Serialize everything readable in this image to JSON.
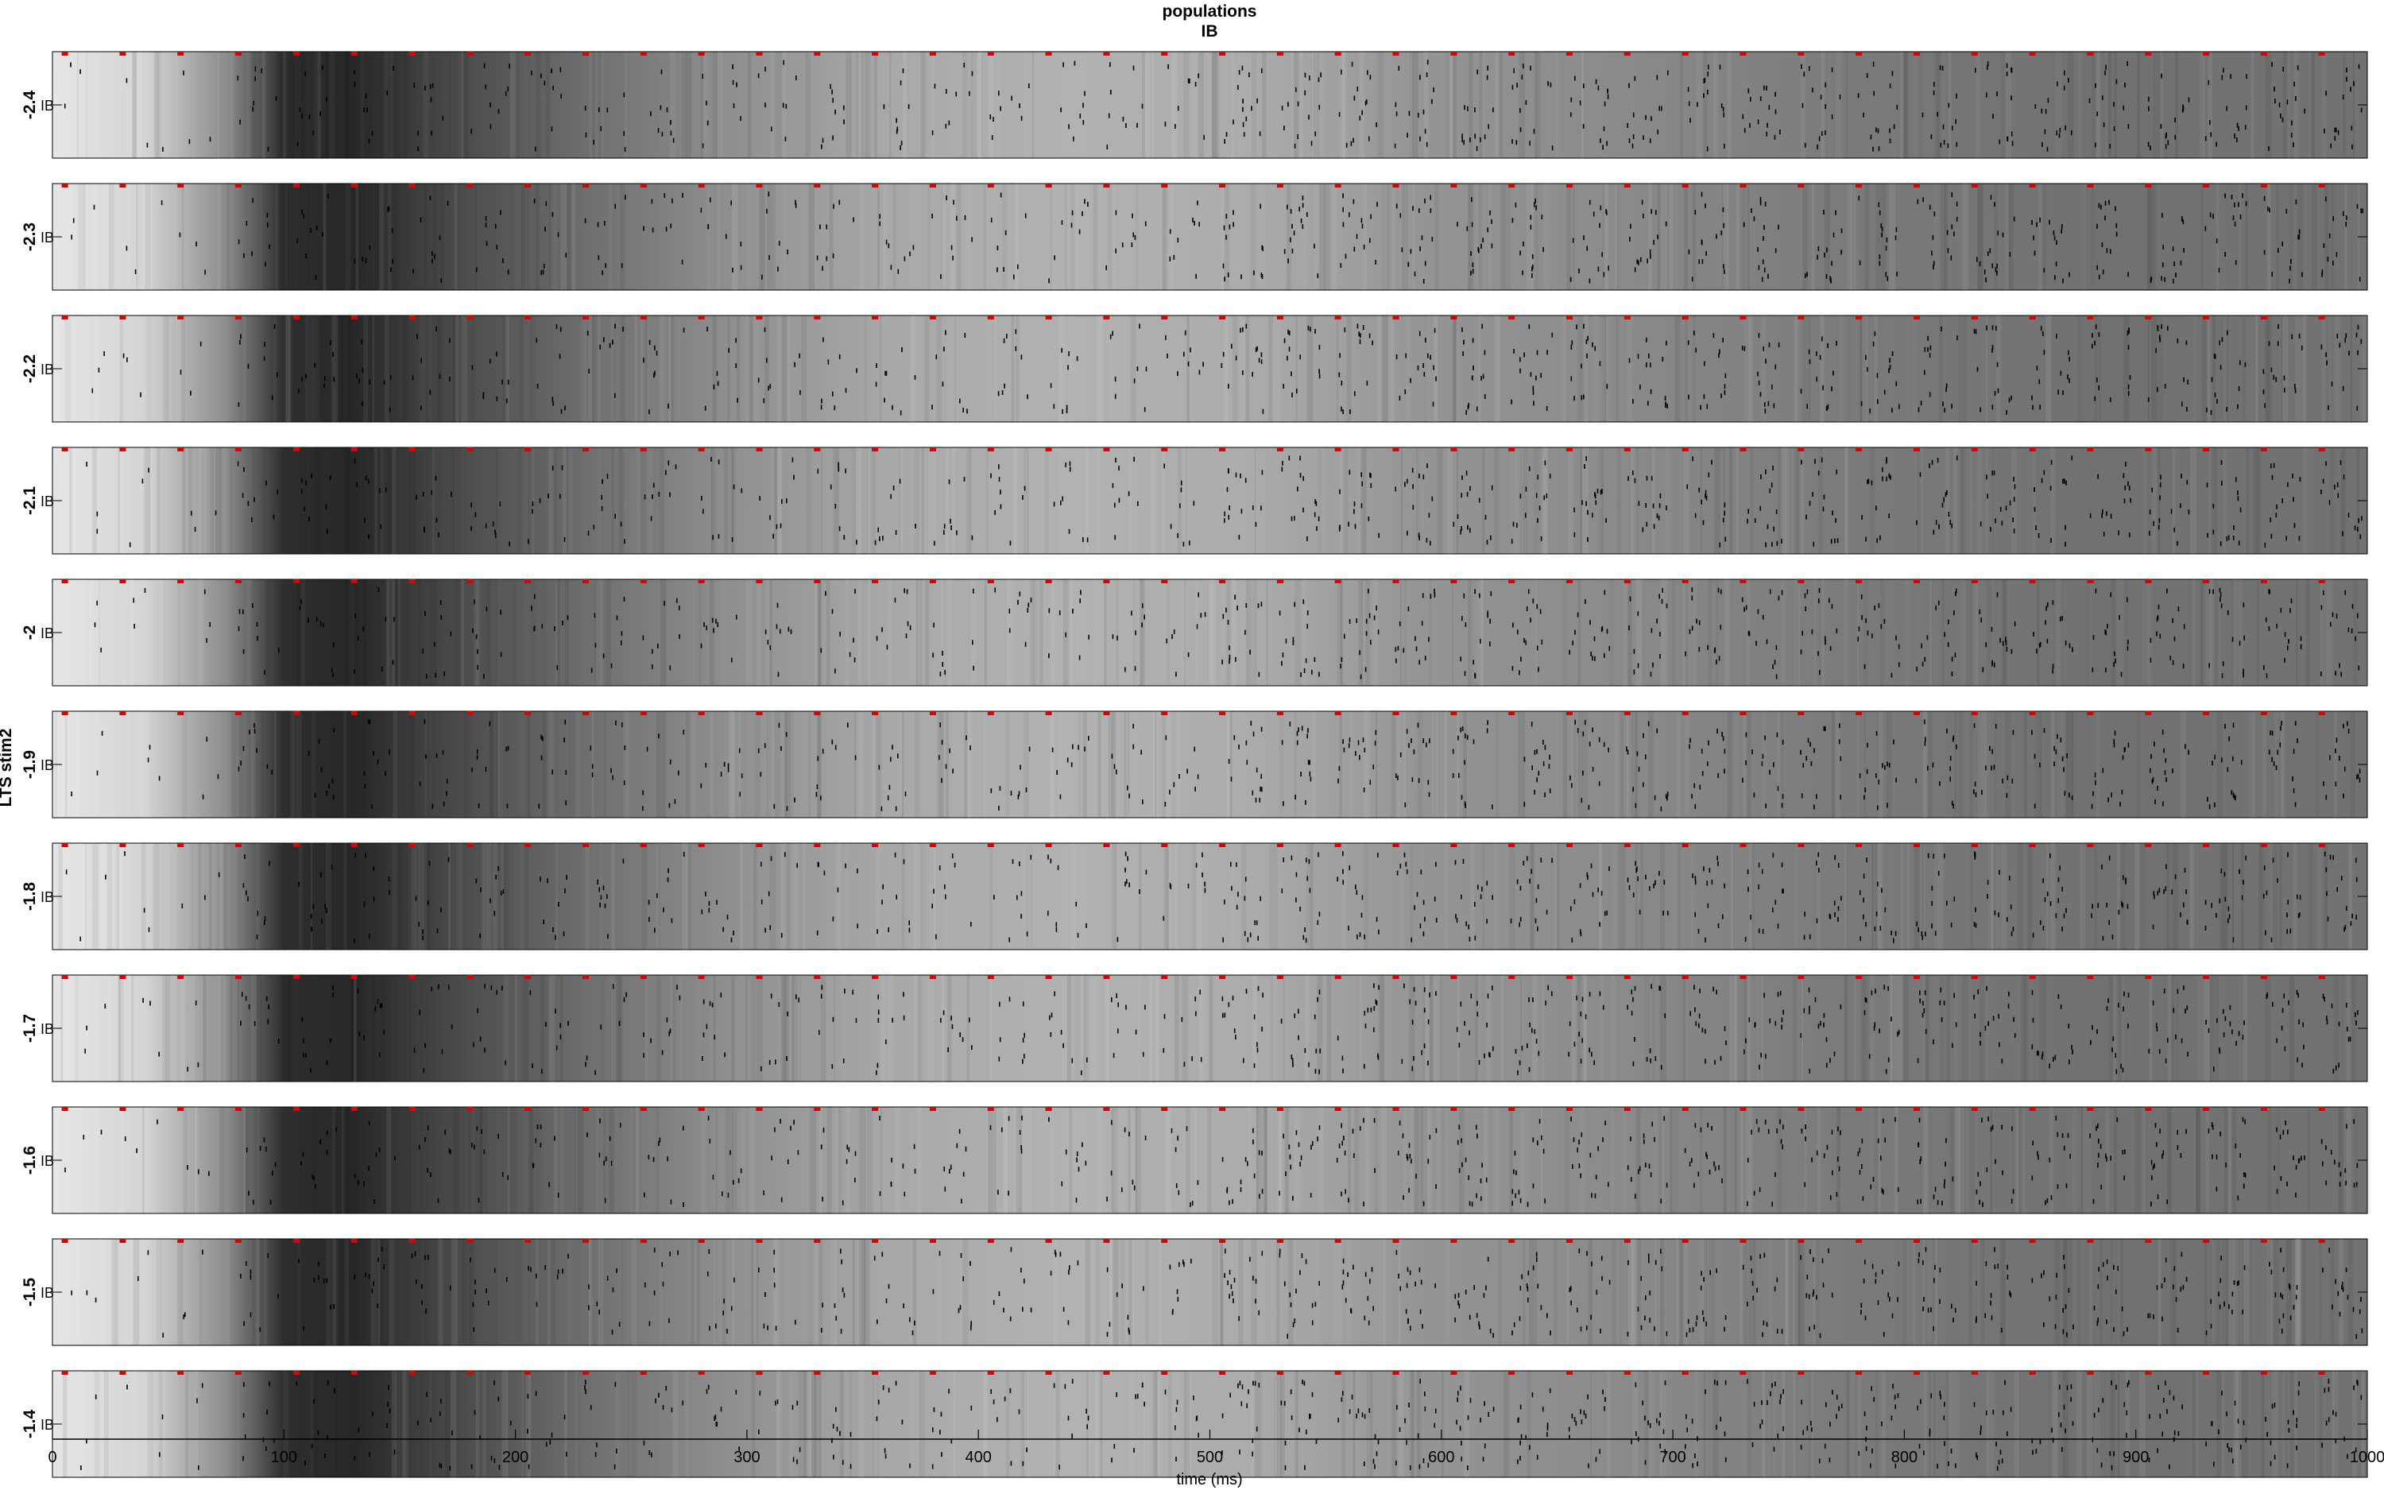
{
  "chart_data": {
    "type": "raster",
    "title": "populations",
    "subtitle": "IB",
    "xlabel": "time (ms)",
    "group_label": "LTS stim2",
    "xlim": [
      0,
      1000
    ],
    "x_ticks": [
      0,
      100,
      200,
      300,
      400,
      500,
      600,
      700,
      800,
      900,
      1000
    ],
    "population": "IB",
    "panels": [
      {
        "value": "-2.4",
        "population_label": "IB"
      },
      {
        "value": "-2.3",
        "population_label": "IB"
      },
      {
        "value": "-2.2",
        "population_label": "IB"
      },
      {
        "value": "-2.1",
        "population_label": "IB"
      },
      {
        "value": "-2",
        "population_label": "IB"
      },
      {
        "value": "-1.9",
        "population_label": "IB"
      },
      {
        "value": "-1.8",
        "population_label": "IB"
      },
      {
        "value": "-1.7",
        "population_label": "IB"
      },
      {
        "value": "-1.6",
        "population_label": "IB"
      },
      {
        "value": "-1.5",
        "population_label": "IB"
      },
      {
        "value": "-1.4",
        "population_label": "IB"
      }
    ],
    "stimulus_times_ms": [
      5,
      30,
      55,
      80,
      105,
      130,
      155,
      180,
      205,
      230,
      255,
      280,
      305,
      330,
      355,
      380,
      405,
      430,
      455,
      480,
      505,
      530,
      555,
      580,
      605,
      630,
      655,
      680,
      705,
      730,
      755,
      780,
      805,
      830,
      855,
      880,
      905,
      930,
      955,
      980
    ],
    "stimulus_color": "#e00000",
    "spike_color": "#000000"
  }
}
